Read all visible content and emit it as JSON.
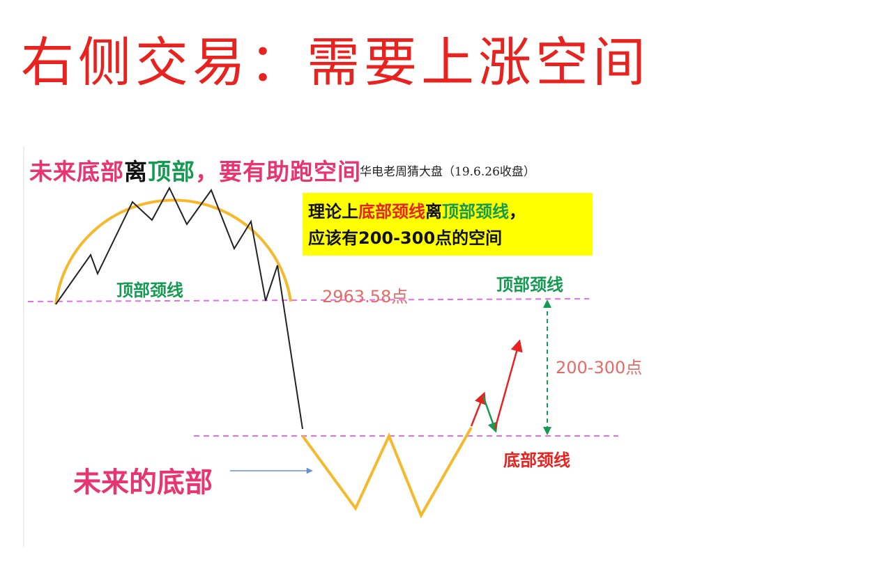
{
  "title": "右侧交易：需要上涨空间",
  "subtitle": {
    "part1": "未来底部",
    "part2": "离",
    "part3": "顶部",
    "part4": "，要有助跑空间"
  },
  "source_note": "华电老周猜大盘（19.6.26收盘）",
  "callout": {
    "line1_a": "理论上",
    "line1_b": "底部颈线",
    "line1_c": "离",
    "line1_d": "顶部颈线",
    "line1_e": "，",
    "line2": "应该有200-300点的空间"
  },
  "labels": {
    "top_neckline_left": "顶部颈线",
    "neckline_value": "2963.58点",
    "top_neckline_right": "顶部颈线",
    "gap": "200-300点",
    "bottom_neckline": "底部颈线",
    "future_bottom": "未来的底部"
  },
  "colors": {
    "title_red": "#e8231f",
    "pink": "#e8346f",
    "green": "#159a52",
    "salmon": "#e56b66",
    "dashed_magenta": "#e36ee8",
    "gold": "#f5b92b",
    "callout_bg": "#ffff00"
  }
}
